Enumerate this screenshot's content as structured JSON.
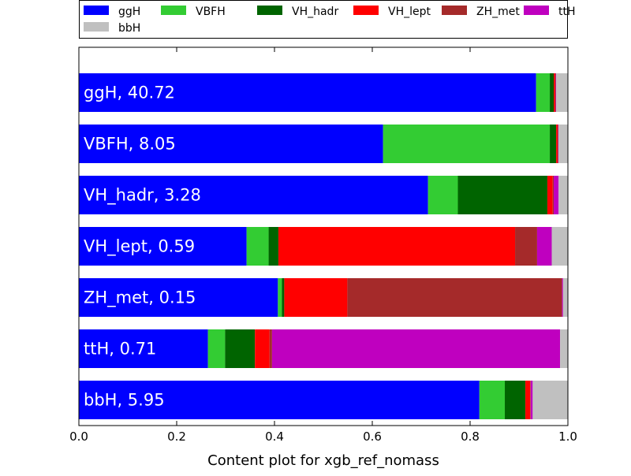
{
  "chart_data": {
    "type": "bar",
    "orientation": "horizontal",
    "stacked": true,
    "normalized": true,
    "xlabel": "Content plot for xgb_ref_nomass",
    "xlim": [
      0.0,
      1.0
    ],
    "xticks": [
      "0.0",
      "0.2",
      "0.4",
      "0.6",
      "0.8",
      "1.0"
    ],
    "grid": false,
    "legend_position": "top",
    "legend": [
      "ggH",
      "VBFH",
      "VH_hadr",
      "VH_lept",
      "ZH_met",
      "ttH",
      "bbH"
    ],
    "series": [
      {
        "name": "ggH",
        "color": "#0000ff"
      },
      {
        "name": "VBFH",
        "color": "#33cc33"
      },
      {
        "name": "VH_hadr",
        "color": "#006400"
      },
      {
        "name": "VH_lept",
        "color": "#ff0000"
      },
      {
        "name": "ZH_met",
        "color": "#a52a2a"
      },
      {
        "name": "ttH",
        "color": "#bf00bf"
      },
      {
        "name": "bbH",
        "color": "#c0c0c0"
      }
    ],
    "categories": [
      {
        "label": "ggH, 40.72",
        "values": [
          0.935,
          0.028,
          0.008,
          0.003,
          0.001,
          0.001,
          0.024
        ]
      },
      {
        "label": "VBFH, 8.05",
        "values": [
          0.622,
          0.341,
          0.013,
          0.003,
          0.001,
          0.001,
          0.019
        ]
      },
      {
        "label": "VH_hadr, 3.28",
        "values": [
          0.714,
          0.061,
          0.183,
          0.011,
          0.002,
          0.01,
          0.019
        ]
      },
      {
        "label": "VH_lept, 0.59",
        "values": [
          0.343,
          0.045,
          0.02,
          0.484,
          0.045,
          0.03,
          0.033
        ]
      },
      {
        "label": "ZH_met, 0.15",
        "values": [
          0.407,
          0.008,
          0.005,
          0.129,
          0.439,
          0.002,
          0.01
        ]
      },
      {
        "label": "ttH, 0.71",
        "values": [
          0.264,
          0.035,
          0.061,
          0.03,
          0.005,
          0.589,
          0.016
        ]
      },
      {
        "label": "bbH, 5.95",
        "values": [
          0.819,
          0.052,
          0.042,
          0.01,
          0.001,
          0.004,
          0.072
        ]
      }
    ]
  }
}
